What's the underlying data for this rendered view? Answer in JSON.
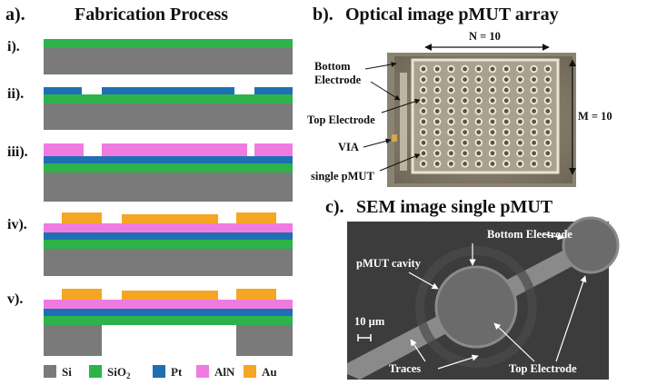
{
  "panel_a": {
    "label": "a).",
    "title": "Fabrication Process",
    "steps": [
      "i).",
      "ii).",
      "iii).",
      "iv).",
      "v)."
    ],
    "legend": [
      {
        "name": "Si",
        "color": "#7a7a7a"
      },
      {
        "name": "SiO",
        "sub": "2",
        "color": "#2db34a"
      },
      {
        "name": "Pt",
        "color": "#1f6fb5"
      },
      {
        "name": "AlN",
        "color": "#f07be0"
      },
      {
        "name": "Au",
        "color": "#f5a623"
      }
    ]
  },
  "panel_b": {
    "label": "b).",
    "title": "Optical image pMUT array",
    "n_label": "N = 10",
    "m_label": "M = 10",
    "annotations": {
      "bottom_electrode_line1": "Bottom",
      "bottom_electrode_line2": "Electrode",
      "top_electrode": "Top Electrode",
      "via": "VIA",
      "single_pmut": "single pMUT"
    },
    "array_rows": 10,
    "array_cols": 10
  },
  "panel_c": {
    "label": "c).",
    "title": "SEM image single pMUT",
    "annotations": {
      "bottom_electrode": "Bottom Electrode",
      "pmut_cavity": "pMUT cavity",
      "scale": "10 µm",
      "traces": "Traces",
      "top_electrode": "Top Electrode"
    }
  },
  "colors": {
    "si": "#7a7a7a",
    "sio2": "#2db34a",
    "pt": "#1f6fb5",
    "aln": "#f07be0",
    "au": "#f5a623"
  }
}
